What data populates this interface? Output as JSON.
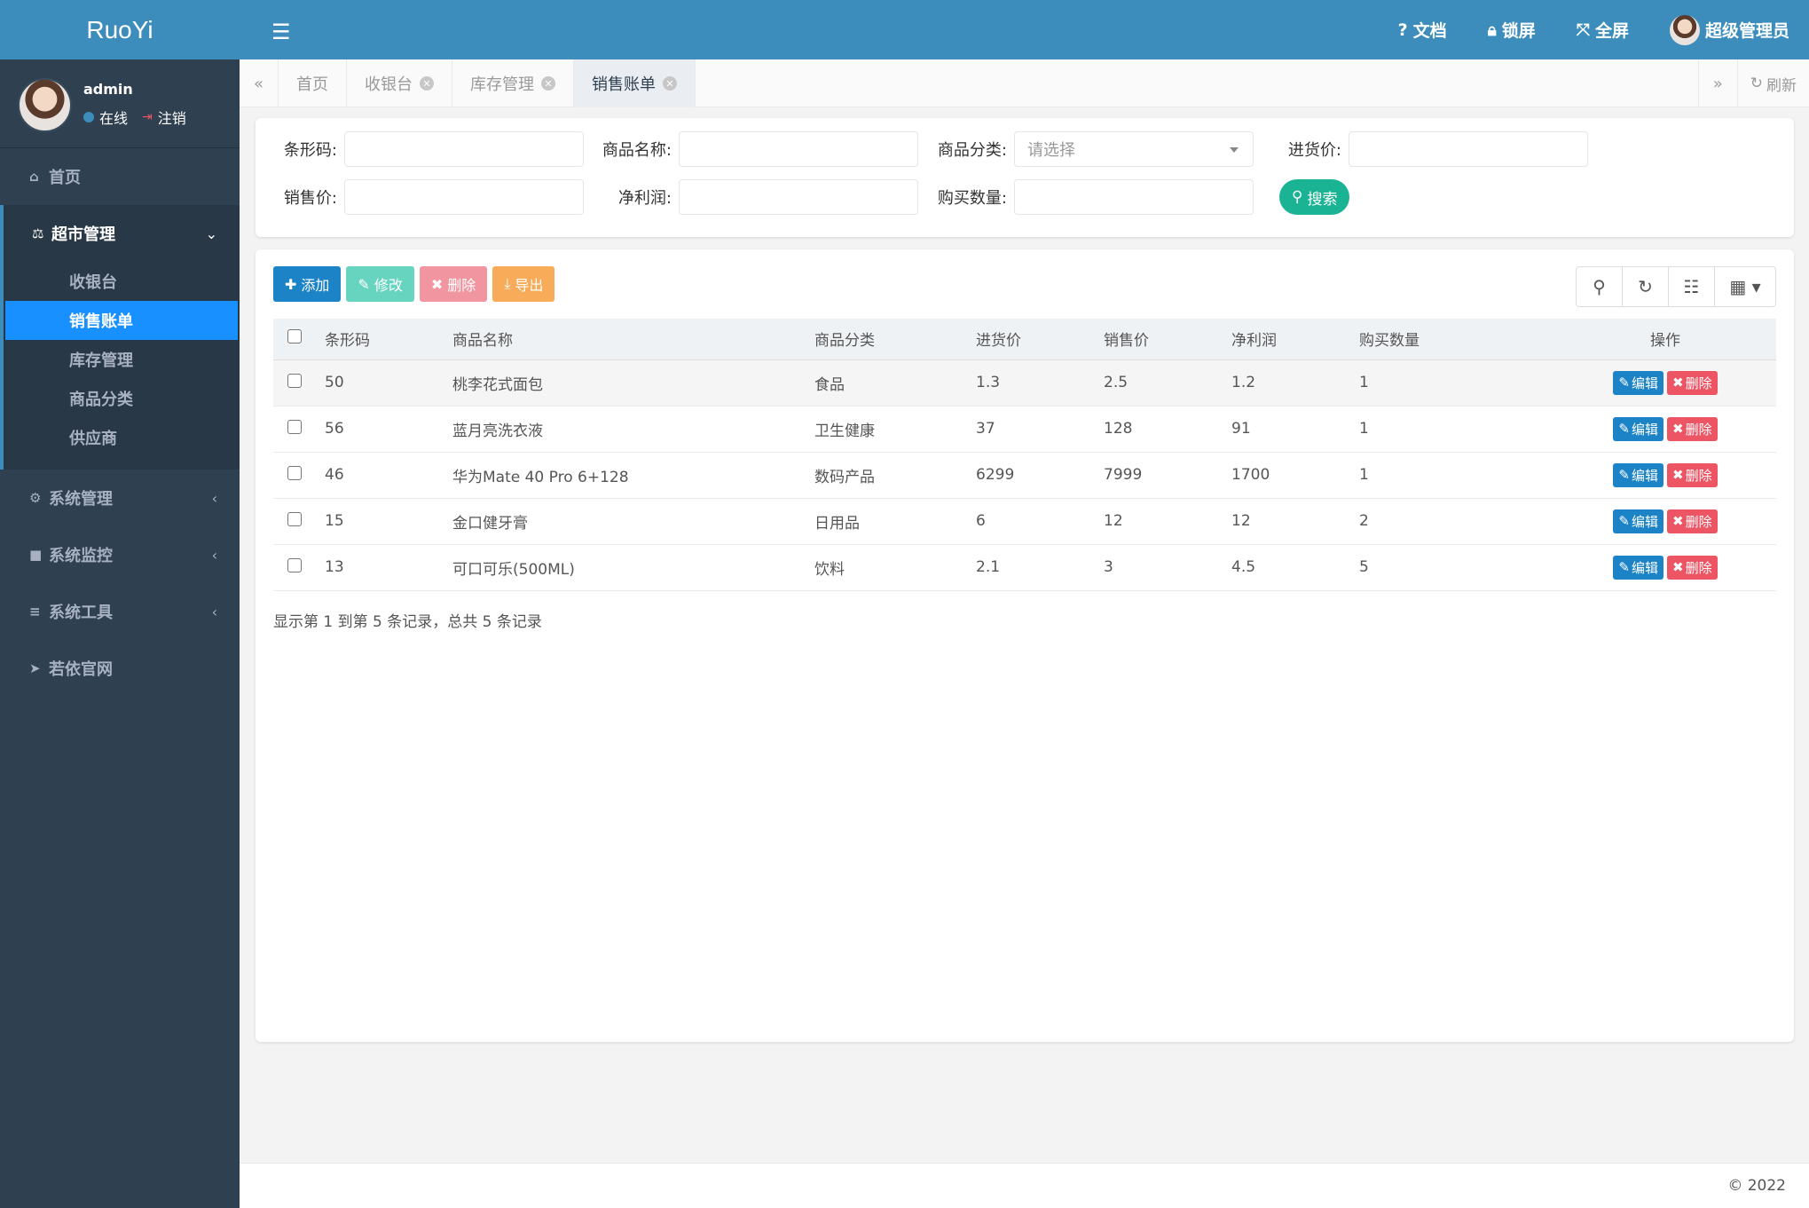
{
  "app": {
    "logo": "RuoYi"
  },
  "user": {
    "name": "admin",
    "status": "在线",
    "logout": "注销"
  },
  "sidebar": {
    "home": "首页",
    "group": {
      "label": "超市管理",
      "items": [
        "收银台",
        "销售账单",
        "库存管理",
        "商品分类",
        "供应商"
      ],
      "active": "销售账单"
    },
    "items": [
      {
        "label": "系统管理",
        "icon": "gear-icon"
      },
      {
        "label": "系统监控",
        "icon": "video-icon"
      },
      {
        "label": "系统工具",
        "icon": "bars-icon"
      },
      {
        "label": "若依官网",
        "icon": "send-icon"
      }
    ]
  },
  "topbar": {
    "docs": "文档",
    "lock": "锁屏",
    "fullscreen": "全屏",
    "admin": "超级管理员"
  },
  "tabs": [
    {
      "label": "首页"
    },
    {
      "label": "收银台"
    },
    {
      "label": "库存管理"
    },
    {
      "label": "销售账单"
    }
  ],
  "tabs_refresh": "刷新",
  "filters": {
    "barcode": "条形码:",
    "name": "商品名称:",
    "category": "商品分类:",
    "category_placeholder": "请选择",
    "purchase_price": "进货价:",
    "sale_price": "销售价:",
    "net_profit": "净利润:",
    "quantity": "购买数量:",
    "search": "搜索"
  },
  "toolbar": {
    "add": "添加",
    "edit": "修改",
    "delete": "删除",
    "export": "导出"
  },
  "table": {
    "headers": [
      "条形码",
      "商品名称",
      "商品分类",
      "进货价",
      "销售价",
      "净利润",
      "购买数量",
      "操作"
    ],
    "rows": [
      [
        "50",
        "桃李花式面包",
        "食品",
        "1.3",
        "2.5",
        "1.2",
        "1"
      ],
      [
        "56",
        "蓝月亮洗衣液",
        "卫生健康",
        "37",
        "128",
        "91",
        "1"
      ],
      [
        "46",
        "华为Mate 40 Pro 6+128",
        "数码产品",
        "6299",
        "7999",
        "1700",
        "1"
      ],
      [
        "15",
        "金口健牙膏",
        "日用品",
        "6",
        "12",
        "12",
        "2"
      ],
      [
        "13",
        "可口可乐(500ML)",
        "饮料",
        "2.1",
        "3",
        "4.5",
        "5"
      ]
    ],
    "edit_label": "编辑",
    "delete_label": "删除"
  },
  "pagination": {
    "info": "显示第 1 到第 5 条记录，总共 5 条记录"
  },
  "footer": {
    "copyright": "© 2022"
  },
  "colors": {
    "primary": "#3c8dbc",
    "sidebar": "#2f4050",
    "active": "#1890ff",
    "success": "#1ab394",
    "danger": "#ed5565"
  }
}
